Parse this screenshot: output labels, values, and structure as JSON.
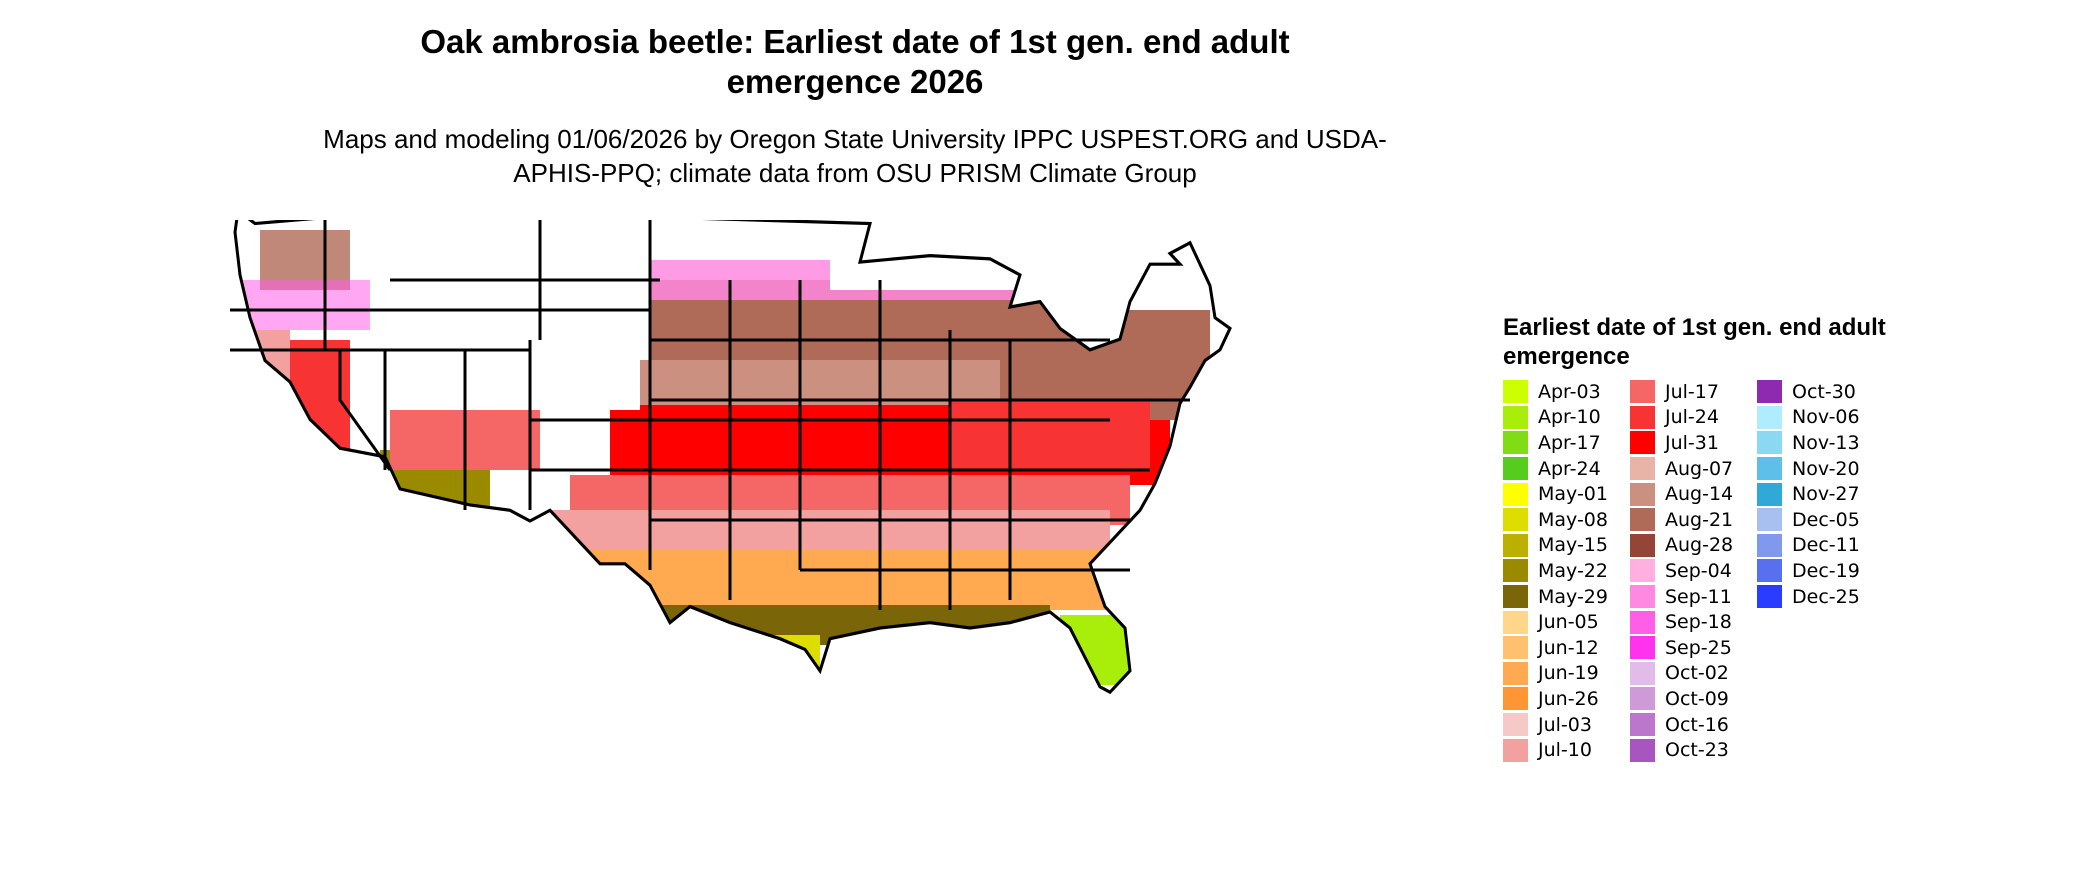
{
  "title": "Oak ambrosia beetle: Earliest date of 1st gen. end adult emergence 2026",
  "subtitle": "Maps and modeling 01/06/2026 by Oregon State University IPPC USPEST.ORG and USDA-APHIS-PPQ; climate data from OSU PRISM Climate Group",
  "legend": {
    "title": "Earliest date of 1st gen. end adult emergence",
    "items": [
      {
        "label": "Apr-03",
        "color": "#ccff00"
      },
      {
        "label": "Apr-10",
        "color": "#a8ee0a"
      },
      {
        "label": "Apr-17",
        "color": "#80dd14"
      },
      {
        "label": "Apr-24",
        "color": "#55cc1e"
      },
      {
        "label": "May-01",
        "color": "#ffff00"
      },
      {
        "label": "May-08",
        "color": "#dddd00"
      },
      {
        "label": "May-15",
        "color": "#bbb000"
      },
      {
        "label": "May-22",
        "color": "#9a8a00"
      },
      {
        "label": "May-29",
        "color": "#7a6608"
      },
      {
        "label": "Jun-05",
        "color": "#ffd68a"
      },
      {
        "label": "Jun-12",
        "color": "#ffc070"
      },
      {
        "label": "Jun-19",
        "color": "#ffaa50"
      },
      {
        "label": "Jun-26",
        "color": "#ff9533"
      },
      {
        "label": "Jul-03",
        "color": "#f7c8c8"
      },
      {
        "label": "Jul-10",
        "color": "#f2a0a0"
      },
      {
        "label": "Jul-17",
        "color": "#f56666"
      },
      {
        "label": "Jul-24",
        "color": "#f73333"
      },
      {
        "label": "Jul-31",
        "color": "#ff0000"
      },
      {
        "label": "Aug-07",
        "color": "#e8b4a8"
      },
      {
        "label": "Aug-14",
        "color": "#cc9080"
      },
      {
        "label": "Aug-21",
        "color": "#b06a58"
      },
      {
        "label": "Aug-28",
        "color": "#954535"
      },
      {
        "label": "Sep-04",
        "color": "#ffb0e0"
      },
      {
        "label": "Sep-11",
        "color": "#ff88e0"
      },
      {
        "label": "Sep-18",
        "color": "#ff5fe8"
      },
      {
        "label": "Sep-25",
        "color": "#ff33ee"
      },
      {
        "label": "Oct-02",
        "color": "#e2bce8"
      },
      {
        "label": "Oct-09",
        "color": "#cf9ad8"
      },
      {
        "label": "Oct-16",
        "color": "#bb77cc"
      },
      {
        "label": "Oct-23",
        "color": "#a855c0"
      },
      {
        "label": "Oct-30",
        "color": "#8e2ab0"
      },
      {
        "label": "Nov-06",
        "color": "#b0ecff"
      },
      {
        "label": "Nov-13",
        "color": "#8ad8f2"
      },
      {
        "label": "Nov-20",
        "color": "#5ec0e8"
      },
      {
        "label": "Nov-27",
        "color": "#30a8d8"
      },
      {
        "label": "Dec-05",
        "color": "#a8c0f0"
      },
      {
        "label": "Dec-11",
        "color": "#8098ee"
      },
      {
        "label": "Dec-19",
        "color": "#5870f0"
      },
      {
        "label": "Dec-25",
        "color": "#2a3cff"
      }
    ]
  }
}
